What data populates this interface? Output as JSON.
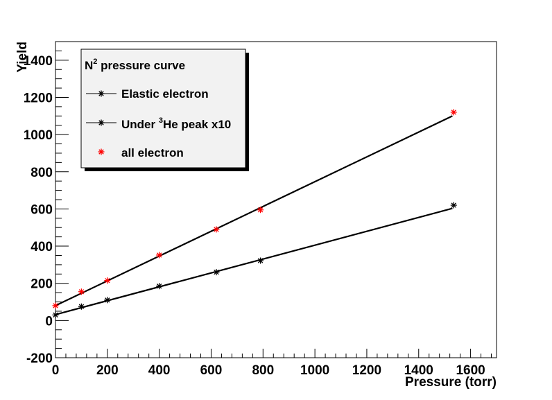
{
  "chart_data": {
    "type": "scatter",
    "title": "",
    "xlabel": "Pressure (torr)",
    "ylabel": "Yield",
    "xlim": [
      0,
      1700
    ],
    "ylim": [
      -200,
      1500
    ],
    "x_ticks": [
      0,
      200,
      400,
      600,
      800,
      1000,
      1200,
      1400,
      1600
    ],
    "y_ticks": [
      -200,
      0,
      200,
      400,
      600,
      800,
      1000,
      1200,
      1400
    ],
    "grid": false,
    "legend": {
      "placement": "top-left",
      "title": {
        "base": "N",
        "sup": "2",
        "rest": " pressure curve"
      },
      "entries": [
        {
          "text": "Elastic electron",
          "color": "#000000"
        },
        {
          "pre": "Under ",
          "sup": "3",
          "post": "He peak x10",
          "color": "#000000"
        },
        {
          "text": "all electron",
          "color": "#ff0000"
        }
      ]
    },
    "series": [
      {
        "color": "#000000",
        "marker": "asterisk",
        "x": [
          0,
          100,
          200,
          400,
          620,
          790,
          1535
        ],
        "y": [
          30,
          75,
          110,
          185,
          260,
          322,
          620
        ]
      },
      {
        "color": "#ff0000",
        "marker": "asterisk",
        "x": [
          0,
          100,
          200,
          400,
          620,
          790,
          1535
        ],
        "y": [
          80,
          155,
          215,
          352,
          490,
          595,
          1120
        ]
      }
    ],
    "fits": [
      {
        "color": "#000000",
        "x": [
          0,
          1530
        ],
        "y": [
          32,
          603
        ]
      },
      {
        "color": "#000000",
        "x": [
          0,
          1530
        ],
        "y": [
          80,
          1100
        ]
      }
    ]
  }
}
